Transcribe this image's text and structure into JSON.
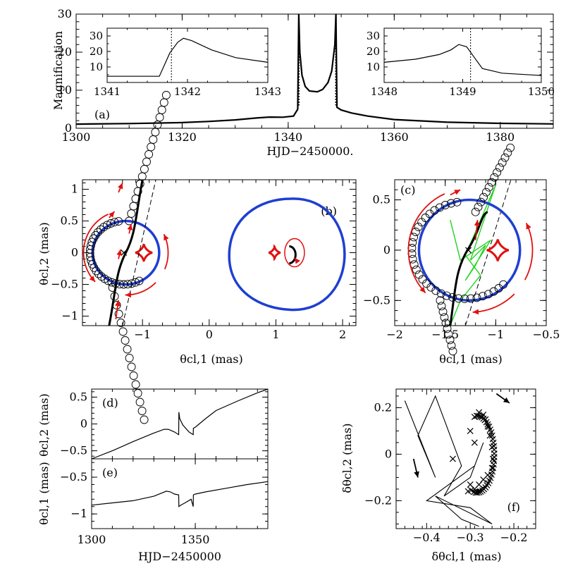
{
  "chart_data": [
    {
      "id": "a",
      "type": "line",
      "tag": "(a)",
      "xlabel": "HJD−2450000.",
      "ylabel": "Magnification",
      "xlim": [
        1300,
        1390
      ],
      "ylim": [
        0,
        30
      ],
      "xticks": [
        1300,
        1320,
        1340,
        1360,
        1380
      ],
      "yticks": [
        0,
        10,
        20,
        30
      ],
      "series": [
        {
          "name": "light curve",
          "x": [
            1300,
            1310,
            1320,
            1325,
            1330,
            1334,
            1336.5,
            1339,
            1341,
            1341.8,
            1342.0,
            1342.2,
            1342.6,
            1343.2,
            1344,
            1345.5,
            1346.5,
            1347.5,
            1348.2,
            1348.8,
            1349.0,
            1349.2,
            1350,
            1352,
            1355,
            1360,
            1370,
            1380,
            1390
          ],
          "y": [
            1.1,
            1.25,
            1.5,
            1.8,
            2.2,
            2.7,
            2.95,
            2.9,
            3.2,
            5.0,
            30,
            20,
            14,
            11,
            9.8,
            9.6,
            10.2,
            12.0,
            15.0,
            22.0,
            30,
            5.5,
            4.8,
            4.0,
            3.2,
            2.3,
            1.6,
            1.3,
            1.15
          ]
        }
      ],
      "insets": [
        {
          "xlim": [
            1341,
            1343
          ],
          "ylim": [
            0,
            35
          ],
          "xticks": [
            1341,
            1342,
            1343
          ],
          "yticks": [
            10,
            20,
            30
          ],
          "curve": {
            "x": [
              1341,
              1341.65,
              1341.78,
              1341.88,
              1341.95,
              1342.05,
              1342.3,
              1342.6,
              1343
            ],
            "y": [
              4,
              4,
              19,
              26,
              28.5,
              27,
              21,
              16,
              13
            ]
          },
          "caustic_crossing": 1341.8
        },
        {
          "xlim": [
            1348,
            1350
          ],
          "ylim": [
            0,
            35
          ],
          "xticks": [
            1348,
            1349,
            1350
          ],
          "yticks": [
            10,
            20,
            30
          ],
          "curve": {
            "x": [
              1348,
              1348.4,
              1348.7,
              1348.85,
              1348.95,
              1349.05,
              1349.15,
              1349.25,
              1349.5,
              1350
            ],
            "y": [
              13,
              15,
              18,
              21,
              24.5,
              23,
              16,
              9,
              6,
              4.5
            ]
          },
          "caustic_crossing": 1349.1
        }
      ]
    },
    {
      "id": "b",
      "type": "scatter",
      "tag": "(b)",
      "xlabel": "θcl,1 (mas)",
      "ylabel": "θcl,2 (mas)",
      "xlim": [
        -1.9,
        2.2
      ],
      "ylim": [
        -1.15,
        1.15
      ],
      "xticks": [
        -1,
        0,
        1,
        2
      ],
      "yticks": [
        -1,
        -0.5,
        0,
        0.5,
        1
      ],
      "einstein_rings": [
        {
          "cx": -1.25,
          "cy": 0.0,
          "r": 0.5
        },
        {
          "cx": 1.2,
          "cy": -0.02,
          "r": 0.88
        }
      ],
      "caustics": [
        {
          "cx": -0.98,
          "cy": 0.0,
          "size": 0.13
        },
        {
          "cx": 0.98,
          "cy": 0.0,
          "size": 0.09
        }
      ]
    },
    {
      "id": "c",
      "type": "scatter",
      "tag": "(c)",
      "xlabel": "θcl,1 (mas)",
      "ylabel": "",
      "xlim": [
        -2.0,
        -0.5
      ],
      "ylim": [
        -0.75,
        0.7
      ],
      "xticks": [
        -2,
        -1.5,
        -1,
        -0.5
      ],
      "yticks": [
        -0.5,
        0,
        0.5
      ],
      "einstein_rings": [
        {
          "cx": -1.26,
          "cy": 0.0,
          "r": 0.5
        }
      ],
      "caustics": [
        {
          "cx": -0.98,
          "cy": 0.0,
          "size": 0.11
        }
      ]
    },
    {
      "id": "d",
      "type": "line",
      "tag": "(d)",
      "xlabel": "",
      "ylabel": "θcl,2 (mas)",
      "xlim": [
        1300,
        1385
      ],
      "ylim": [
        -0.65,
        0.65
      ],
      "xticks": [
        1300,
        1350
      ],
      "yticks": [
        -0.5,
        0,
        0.5
      ],
      "series": [
        {
          "name": "theta2",
          "x": [
            1300,
            1310,
            1320,
            1330,
            1335,
            1337,
            1340,
            1342,
            1342.1,
            1342.5,
            1344,
            1347,
            1349,
            1349.1,
            1350,
            1355,
            1360,
            1370,
            1380,
            1385
          ],
          "y": [
            -0.65,
            -0.5,
            -0.33,
            -0.17,
            -0.1,
            -0.1,
            -0.15,
            -0.2,
            0.22,
            0.1,
            -0.02,
            -0.15,
            -0.2,
            -0.08,
            -0.06,
            0.1,
            0.25,
            0.42,
            0.58,
            0.65
          ]
        }
      ]
    },
    {
      "id": "e",
      "type": "line",
      "tag": "(e)",
      "xlabel": "HJD−2450000",
      "ylabel": "θcl,1 (mas)",
      "xlim": [
        1300,
        1385
      ],
      "ylim": [
        -1.2,
        -0.25
      ],
      "xticks": [
        1300,
        1350
      ],
      "yticks": [
        -1,
        -0.5
      ],
      "series": [
        {
          "name": "theta1",
          "x": [
            1300,
            1310,
            1320,
            1330,
            1336,
            1338,
            1340,
            1342,
            1342.1,
            1343,
            1345,
            1348,
            1349,
            1349.1,
            1350,
            1355,
            1365,
            1375,
            1385
          ],
          "y": [
            -0.88,
            -0.85,
            -0.82,
            -0.76,
            -0.69,
            -0.7,
            -0.73,
            -0.74,
            -0.9,
            -0.88,
            -0.85,
            -0.8,
            -0.9,
            -0.74,
            -0.73,
            -0.7,
            -0.65,
            -0.6,
            -0.56
          ]
        }
      ]
    },
    {
      "id": "f",
      "type": "scatter",
      "tag": "(f)",
      "xlabel": "δθcl,1 (mas)",
      "ylabel": "δθcl,2 (mas)",
      "xlim": [
        -0.47,
        -0.15
      ],
      "ylim": [
        -0.32,
        0.28
      ],
      "xticks": [
        -0.4,
        -0.3,
        -0.2
      ],
      "yticks": [
        -0.2,
        0,
        0.2
      ],
      "markers": {
        "x": [
          -0.29,
          -0.28,
          -0.27,
          -0.265,
          -0.26,
          -0.255,
          -0.25,
          -0.248,
          -0.25,
          -0.26,
          -0.27,
          -0.28,
          -0.29,
          -0.298,
          -0.305,
          -0.34,
          -0.3,
          -0.29,
          -0.3
        ],
        "y": [
          0.16,
          0.18,
          0.17,
          0.15,
          0.12,
          0.08,
          0.03,
          -0.02,
          -0.06,
          -0.09,
          -0.11,
          -0.13,
          -0.15,
          -0.155,
          -0.16,
          -0.02,
          -0.13,
          0.05,
          0.1
        ]
      }
    }
  ]
}
